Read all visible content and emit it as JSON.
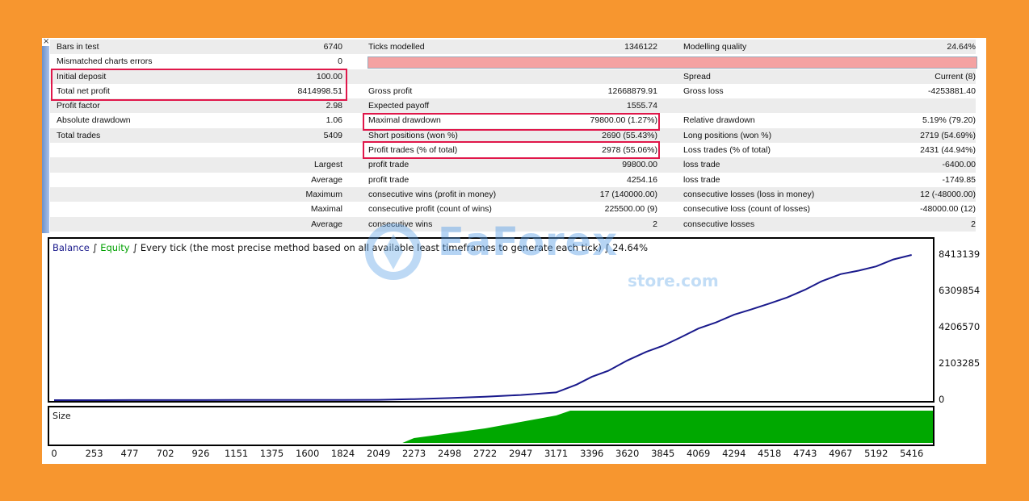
{
  "report": {
    "rows": [
      {
        "c1": "Bars in test",
        "c2": "6740",
        "c3": "Ticks modelled",
        "c4": "1346122",
        "c5": "Modelling quality",
        "c6": "24.64%"
      },
      {
        "c1": "Mismatched charts errors",
        "c2": "0",
        "c3": "",
        "c4": "",
        "c5": "",
        "c6": "",
        "errbar": true
      },
      {
        "c1": "Initial deposit",
        "c2": "100.00",
        "c3": "",
        "c4": "",
        "c5": "Spread",
        "c6": "Current (8)"
      },
      {
        "c1": "Total net profit",
        "c2": "8414998.51",
        "c3": "Gross profit",
        "c4": "12668879.91",
        "c5": "Gross loss",
        "c6": "-4253881.40"
      },
      {
        "c1": "Profit factor",
        "c2": "2.98",
        "c3": "Expected payoff",
        "c4": "1555.74",
        "c5": "",
        "c6": ""
      },
      {
        "c1": "Absolute drawdown",
        "c2": "1.06",
        "c3": "Maximal drawdown",
        "c4": "79800.00 (1.27%)",
        "c5": "Relative drawdown",
        "c6": "5.19% (79.20)"
      },
      {
        "c1": "Total trades",
        "c2": "5409",
        "c3": "Short positions (won %)",
        "c4": "2690 (55.43%)",
        "c5": "Long positions (won %)",
        "c6": "2719 (54.69%)"
      },
      {
        "c1": "",
        "c2": "",
        "c3": "Profit trades (% of total)",
        "c4": "2978 (55.06%)",
        "c5": "Loss trades (% of total)",
        "c6": "2431 (44.94%)"
      },
      {
        "c1": "",
        "c2": "Largest",
        "c3": "profit trade",
        "c4": "99800.00",
        "c5": "loss trade",
        "c6": "-6400.00"
      },
      {
        "c1": "",
        "c2": "Average",
        "c3": "profit trade",
        "c4": "4254.16",
        "c5": "loss trade",
        "c6": "-1749.85"
      },
      {
        "c1": "",
        "c2": "Maximum",
        "c3": "consecutive wins (profit in money)",
        "c4": "17 (140000.00)",
        "c5": "consecutive losses (loss in money)",
        "c6": "12 (-48000.00)"
      },
      {
        "c1": "",
        "c2": "Maximal",
        "c3": "consecutive profit (count of wins)",
        "c4": "225500.00 (9)",
        "c5": "consecutive loss (count of losses)",
        "c6": "-48000.00 (12)"
      },
      {
        "c1": "",
        "c2": "Average",
        "c3": "consecutive wins",
        "c4": "2",
        "c5": "consecutive losses",
        "c6": "2"
      }
    ]
  },
  "legend": {
    "balance": "Balance",
    "sep1": " ∫ ",
    "equity": "Equity",
    "sep2": " ∫ ",
    "method": "Every tick (the most precise method based on all available least timeframes to generate each tick)",
    "sep3": " ∫ ",
    "quality": "24.64%"
  },
  "size_label": "Size",
  "watermark": {
    "main": "EaForex",
    "sub": "store.com"
  },
  "colors": {
    "balance": "#1a1a8c",
    "equity": "#00a000",
    "size": "#00a800",
    "highlight": "#e0174a",
    "background": "#f7962f"
  },
  "chart_data": {
    "type": "line",
    "series": [
      {
        "name": "Balance",
        "values": [
          [
            0,
            100
          ],
          [
            253,
            2000
          ],
          [
            477,
            3500
          ],
          [
            702,
            5000
          ],
          [
            926,
            7000
          ],
          [
            1151,
            9000
          ],
          [
            1375,
            11000
          ],
          [
            1600,
            13000
          ],
          [
            1824,
            15000
          ],
          [
            2049,
            20000
          ],
          [
            2273,
            60000
          ],
          [
            2498,
            120000
          ],
          [
            2722,
            200000
          ],
          [
            2947,
            300000
          ],
          [
            3171,
            450000
          ],
          [
            3300,
            900000
          ],
          [
            3396,
            1350000
          ],
          [
            3500,
            1700000
          ],
          [
            3620,
            2300000
          ],
          [
            3740,
            2800000
          ],
          [
            3845,
            3150000
          ],
          [
            3960,
            3650000
          ],
          [
            4069,
            4150000
          ],
          [
            4180,
            4500000
          ],
          [
            4294,
            4950000
          ],
          [
            4400,
            5250000
          ],
          [
            4518,
            5600000
          ],
          [
            4630,
            5950000
          ],
          [
            4743,
            6400000
          ],
          [
            4850,
            6900000
          ],
          [
            4967,
            7300000
          ],
          [
            5080,
            7500000
          ],
          [
            5192,
            7750000
          ],
          [
            5300,
            8150000
          ],
          [
            5416,
            8413139
          ]
        ]
      }
    ],
    "x_ticks": [
      "0",
      "253",
      "477",
      "702",
      "926",
      "1151",
      "1375",
      "1600",
      "1824",
      "2049",
      "2273",
      "2498",
      "2722",
      "2947",
      "3171",
      "3396",
      "3620",
      "3845",
      "4069",
      "4294",
      "4518",
      "4743",
      "4967",
      "5192",
      "5416"
    ],
    "y_ticks": [
      "8413139",
      "6309854",
      "4206570",
      "2103285",
      "0"
    ],
    "xlim": [
      0,
      5550
    ],
    "ylim": [
      0,
      8413139
    ],
    "size": {
      "type": "area",
      "values": [
        [
          0,
          0
        ],
        [
          2200,
          0
        ],
        [
          2273,
          3
        ],
        [
          2498,
          6
        ],
        [
          2722,
          9
        ],
        [
          2947,
          13
        ],
        [
          3171,
          17
        ],
        [
          3260,
          20
        ],
        [
          3300,
          20
        ],
        [
          5550,
          20
        ]
      ],
      "ylim": [
        0,
        20
      ]
    }
  }
}
